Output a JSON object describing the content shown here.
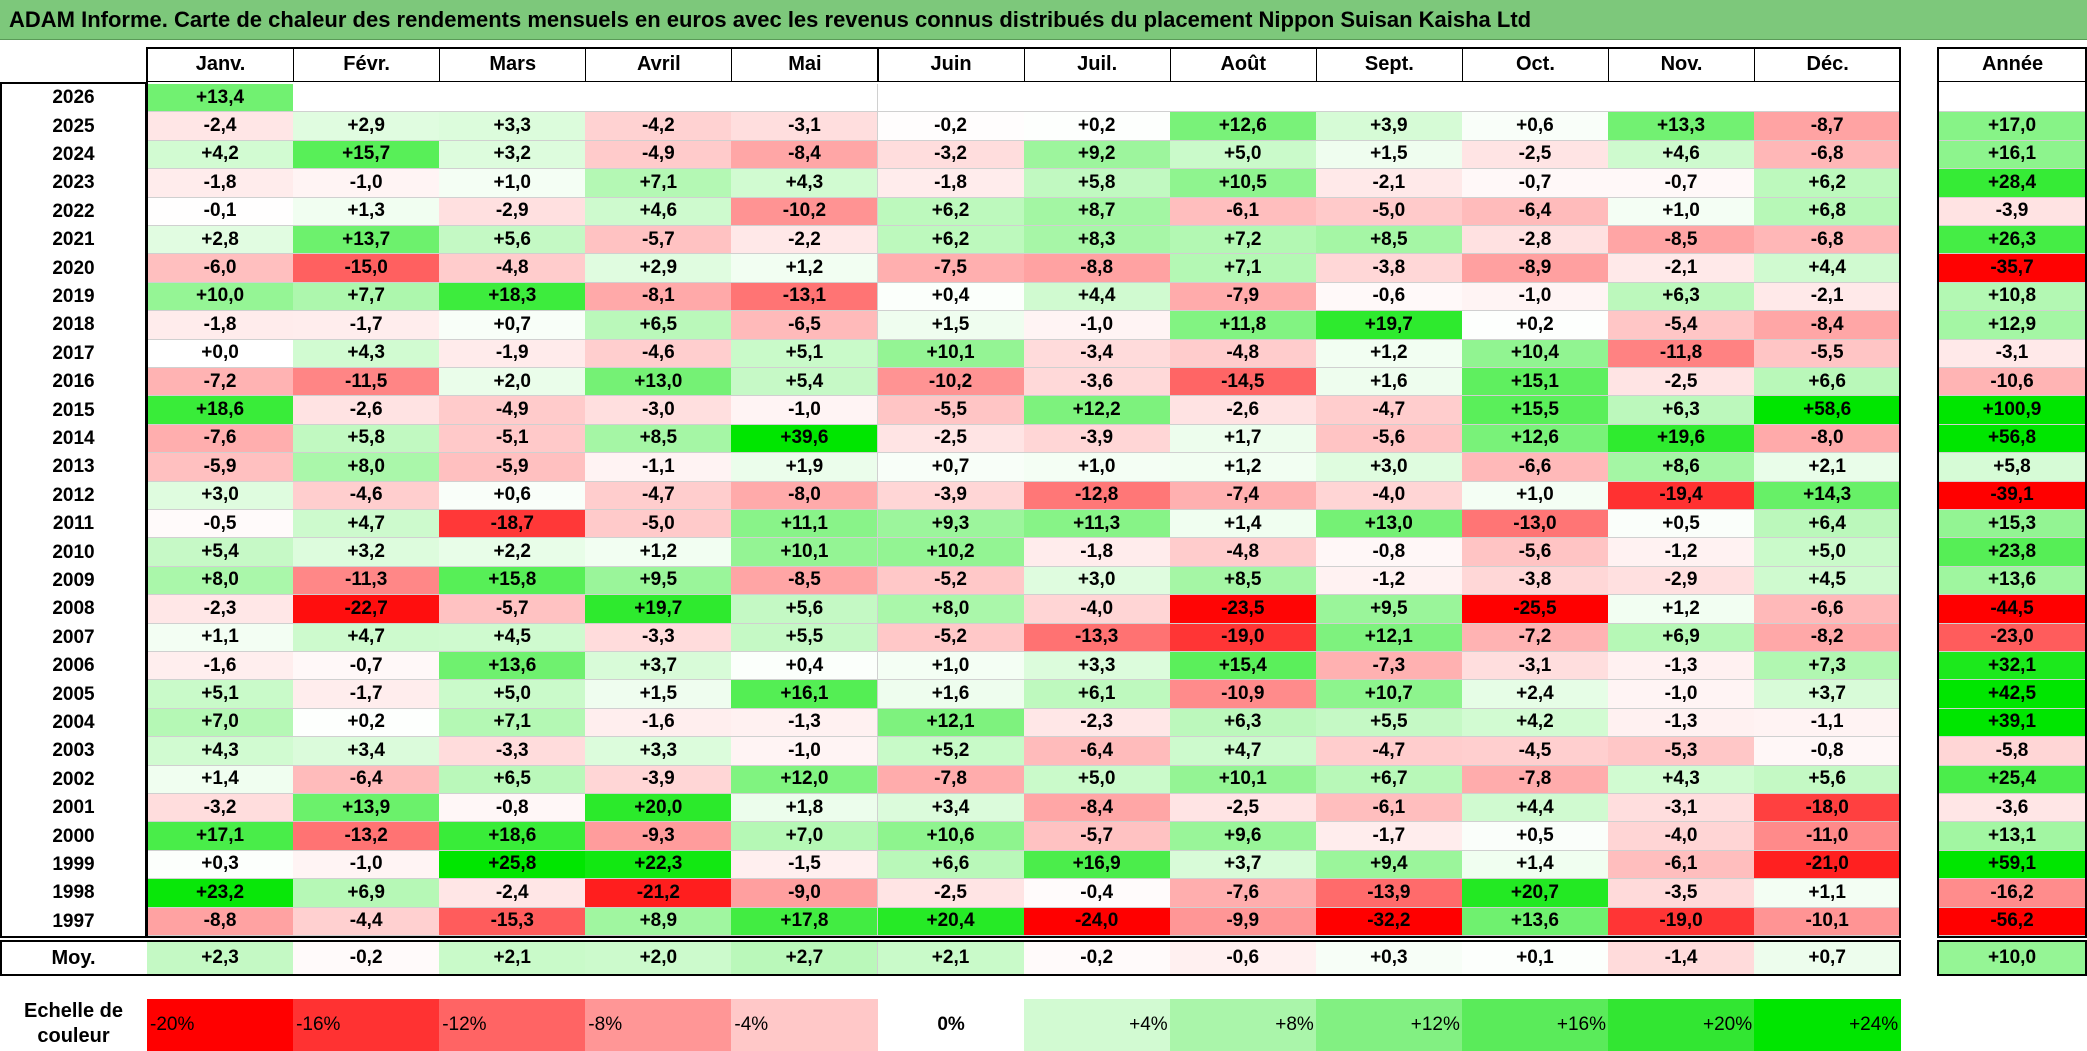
{
  "title": "ADAM Informe. Carte de chaleur des rendements mensuels en euros avec les revenus connus distribués du placement Nippon Suisan Kaisha Ltd",
  "chart_data": {
    "type": "heatmap",
    "months": [
      "Janv.",
      "Févr.",
      "Mars",
      "Avril",
      "Mai",
      "Juin",
      "Juil.",
      "Août",
      "Sept.",
      "Oct.",
      "Nov.",
      "Déc."
    ],
    "year_column_label": "Année",
    "average_row_label": "Moy.",
    "rows": [
      {
        "year": "2026",
        "values": [
          "+13,4",
          "",
          "",
          "",
          "",
          "",
          "",
          "",
          "",
          "",
          "",
          ""
        ],
        "annual": ""
      },
      {
        "year": "2025",
        "values": [
          "-2,4",
          "+2,9",
          "+3,3",
          "-4,2",
          "-3,1",
          "-0,2",
          "+0,2",
          "+12,6",
          "+3,9",
          "+0,6",
          "+13,3",
          "-8,7"
        ],
        "annual": "+17,0"
      },
      {
        "year": "2024",
        "values": [
          "+4,2",
          "+15,7",
          "+3,2",
          "-4,9",
          "-8,4",
          "-3,2",
          "+9,2",
          "+5,0",
          "+1,5",
          "-2,5",
          "+4,6",
          "-6,8"
        ],
        "annual": "+16,1"
      },
      {
        "year": "2023",
        "values": [
          "-1,8",
          "-1,0",
          "+1,0",
          "+7,1",
          "+4,3",
          "-1,8",
          "+5,8",
          "+10,5",
          "-2,1",
          "-0,7",
          "-0,7",
          "+6,2"
        ],
        "annual": "+28,4"
      },
      {
        "year": "2022",
        "values": [
          "-0,1",
          "+1,3",
          "-2,9",
          "+4,6",
          "-10,2",
          "+6,2",
          "+8,7",
          "-6,1",
          "-5,0",
          "-6,4",
          "+1,0",
          "+6,8"
        ],
        "annual": "-3,9"
      },
      {
        "year": "2021",
        "values": [
          "+2,8",
          "+13,7",
          "+5,6",
          "-5,7",
          "-2,2",
          "+6,2",
          "+8,3",
          "+7,2",
          "+8,5",
          "-2,8",
          "-8,5",
          "-6,8"
        ],
        "annual": "+26,3"
      },
      {
        "year": "2020",
        "values": [
          "-6,0",
          "-15,0",
          "-4,8",
          "+2,9",
          "+1,2",
          "-7,5",
          "-8,8",
          "+7,1",
          "-3,8",
          "-8,9",
          "-2,1",
          "+4,4"
        ],
        "annual": "-35,7"
      },
      {
        "year": "2019",
        "values": [
          "+10,0",
          "+7,7",
          "+18,3",
          "-8,1",
          "-13,1",
          "+0,4",
          "+4,4",
          "-7,9",
          "-0,6",
          "-1,0",
          "+6,3",
          "-2,1"
        ],
        "annual": "+10,8"
      },
      {
        "year": "2018",
        "values": [
          "-1,8",
          "-1,7",
          "+0,7",
          "+6,5",
          "-6,5",
          "+1,5",
          "-1,0",
          "+11,8",
          "+19,7",
          "+0,2",
          "-5,4",
          "-8,4"
        ],
        "annual": "+12,9"
      },
      {
        "year": "2017",
        "values": [
          "+0,0",
          "+4,3",
          "-1,9",
          "-4,6",
          "+5,1",
          "+10,1",
          "-3,4",
          "-4,8",
          "+1,2",
          "+10,4",
          "-11,8",
          "-5,5"
        ],
        "annual": "-3,1"
      },
      {
        "year": "2016",
        "values": [
          "-7,2",
          "-11,5",
          "+2,0",
          "+13,0",
          "+5,4",
          "-10,2",
          "-3,6",
          "-14,5",
          "+1,6",
          "+15,1",
          "-2,5",
          "+6,6"
        ],
        "annual": "-10,6"
      },
      {
        "year": "2015",
        "values": [
          "+18,6",
          "-2,6",
          "-4,9",
          "-3,0",
          "-1,0",
          "-5,5",
          "+12,2",
          "-2,6",
          "-4,7",
          "+15,5",
          "+6,3",
          "+58,6"
        ],
        "annual": "+100,9"
      },
      {
        "year": "2014",
        "values": [
          "-7,6",
          "+5,8",
          "-5,1",
          "+8,5",
          "+39,6",
          "-2,5",
          "-3,9",
          "+1,7",
          "-5,6",
          "+12,6",
          "+19,6",
          "-8,0"
        ],
        "annual": "+56,8"
      },
      {
        "year": "2013",
        "values": [
          "-5,9",
          "+8,0",
          "-5,9",
          "-1,1",
          "+1,9",
          "+0,7",
          "+1,0",
          "+1,2",
          "+3,0",
          "-6,6",
          "+8,6",
          "+2,1"
        ],
        "annual": "+5,8"
      },
      {
        "year": "2012",
        "values": [
          "+3,0",
          "-4,6",
          "+0,6",
          "-4,7",
          "-8,0",
          "-3,9",
          "-12,8",
          "-7,4",
          "-4,0",
          "+1,0",
          "-19,4",
          "+14,3"
        ],
        "annual": "-39,1"
      },
      {
        "year": "2011",
        "values": [
          "-0,5",
          "+4,7",
          "-18,7",
          "-5,0",
          "+11,1",
          "+9,3",
          "+11,3",
          "+1,4",
          "+13,0",
          "-13,0",
          "+0,5",
          "+6,4"
        ],
        "annual": "+15,3"
      },
      {
        "year": "2010",
        "values": [
          "+5,4",
          "+3,2",
          "+2,2",
          "+1,2",
          "+10,1",
          "+10,2",
          "-1,8",
          "-4,8",
          "-0,8",
          "-5,6",
          "-1,2",
          "+5,0"
        ],
        "annual": "+23,8"
      },
      {
        "year": "2009",
        "values": [
          "+8,0",
          "-11,3",
          "+15,8",
          "+9,5",
          "-8,5",
          "-5,2",
          "+3,0",
          "+8,5",
          "-1,2",
          "-3,8",
          "-2,9",
          "+4,5"
        ],
        "annual": "+13,6"
      },
      {
        "year": "2008",
        "values": [
          "-2,3",
          "-22,7",
          "-5,7",
          "+19,7",
          "+5,6",
          "+8,0",
          "-4,0",
          "-23,5",
          "+9,5",
          "-25,5",
          "+1,2",
          "-6,6"
        ],
        "annual": "-44,5"
      },
      {
        "year": "2007",
        "values": [
          "+1,1",
          "+4,7",
          "+4,5",
          "-3,3",
          "+5,5",
          "-5,2",
          "-13,3",
          "-19,0",
          "+12,1",
          "-7,2",
          "+6,9",
          "-8,2"
        ],
        "annual": "-23,0"
      },
      {
        "year": "2006",
        "values": [
          "-1,6",
          "-0,7",
          "+13,6",
          "+3,7",
          "+0,4",
          "+1,0",
          "+3,3",
          "+15,4",
          "-7,3",
          "-3,1",
          "-1,3",
          "+7,3"
        ],
        "annual": "+32,1"
      },
      {
        "year": "2005",
        "values": [
          "+5,1",
          "-1,7",
          "+5,0",
          "+1,5",
          "+16,1",
          "+1,6",
          "+6,1",
          "-10,9",
          "+10,7",
          "+2,4",
          "-1,0",
          "+3,7"
        ],
        "annual": "+42,5"
      },
      {
        "year": "2004",
        "values": [
          "+7,0",
          "+0,2",
          "+7,1",
          "-1,6",
          "-1,3",
          "+12,1",
          "-2,3",
          "+6,3",
          "+5,5",
          "+4,2",
          "-1,3",
          "-1,1"
        ],
        "annual": "+39,1"
      },
      {
        "year": "2003",
        "values": [
          "+4,3",
          "+3,4",
          "-3,3",
          "+3,3",
          "-1,0",
          "+5,2",
          "-6,4",
          "+4,7",
          "-4,7",
          "-4,5",
          "-5,3",
          "-0,8"
        ],
        "annual": "-5,8"
      },
      {
        "year": "2002",
        "values": [
          "+1,4",
          "-6,4",
          "+6,5",
          "-3,9",
          "+12,0",
          "-7,8",
          "+5,0",
          "+10,1",
          "+6,7",
          "-7,8",
          "+4,3",
          "+5,6"
        ],
        "annual": "+25,4"
      },
      {
        "year": "2001",
        "values": [
          "-3,2",
          "+13,9",
          "-0,8",
          "+20,0",
          "+1,8",
          "+3,4",
          "-8,4",
          "-2,5",
          "-6,1",
          "+4,4",
          "-3,1",
          "-18,0"
        ],
        "annual": "-3,6"
      },
      {
        "year": "2000",
        "values": [
          "+17,1",
          "-13,2",
          "+18,6",
          "-9,3",
          "+7,0",
          "+10,6",
          "-5,7",
          "+9,6",
          "-1,7",
          "+0,5",
          "-4,0",
          "-11,0"
        ],
        "annual": "+13,1"
      },
      {
        "year": "1999",
        "values": [
          "+0,3",
          "-1,0",
          "+25,8",
          "+22,3",
          "-1,5",
          "+6,6",
          "+16,9",
          "+3,7",
          "+9,4",
          "+1,4",
          "-6,1",
          "-21,0"
        ],
        "annual": "+59,1"
      },
      {
        "year": "1998",
        "values": [
          "+23,2",
          "+6,9",
          "-2,4",
          "-21,2",
          "-9,0",
          "-2,5",
          "-0,4",
          "-7,6",
          "-13,9",
          "+20,7",
          "-3,5",
          "+1,1"
        ],
        "annual": "-16,2"
      },
      {
        "year": "1997",
        "values": [
          "-8,8",
          "-4,4",
          "-15,3",
          "+8,9",
          "+17,8",
          "+20,4",
          "-24,0",
          "-9,9",
          "-32,2",
          "+13,6",
          "-19,0",
          "-10,1"
        ],
        "annual": "-56,2"
      }
    ],
    "averages": [
      "+2,3",
      "-0,2",
      "+2,1",
      "+2,0",
      "+2,7",
      "+2,1",
      "-0,2",
      "-0,6",
      "+0,3",
      "+0,1",
      "-1,4",
      "+0,7"
    ],
    "average_annual": "+10,0",
    "legend": {
      "label": "Echelle de couleur",
      "steps": [
        {
          "label": "-20%",
          "value": -20,
          "color": "#ff0000"
        },
        {
          "label": "-16%",
          "value": -16,
          "color": "#ff3232"
        },
        {
          "label": "-12%",
          "value": -12,
          "color": "#ff6464"
        },
        {
          "label": "-8%",
          "value": -8,
          "color": "#ff9696"
        },
        {
          "label": "-4%",
          "value": -4,
          "color": "#ffc8c8"
        },
        {
          "label": "0%",
          "value": 0,
          "color": "#ffffff"
        },
        {
          "label": "+4%",
          "value": 4,
          "color": "#d2fad2"
        },
        {
          "label": "+8%",
          "value": 8,
          "color": "#aaf5aa"
        },
        {
          "label": "+12%",
          "value": 12,
          "color": "#82f082"
        },
        {
          "label": "+16%",
          "value": 16,
          "color": "#5aeb5a"
        },
        {
          "label": "+20%",
          "value": 20,
          "color": "#32e632"
        },
        {
          "label": "+24%",
          "value": 24,
          "color": "#00e600"
        }
      ]
    },
    "colors": {
      "negative_max": "#ff0000",
      "neutral": "#ffffff",
      "positive_max": "#00e600",
      "title_bar": "#7dc87b"
    }
  }
}
